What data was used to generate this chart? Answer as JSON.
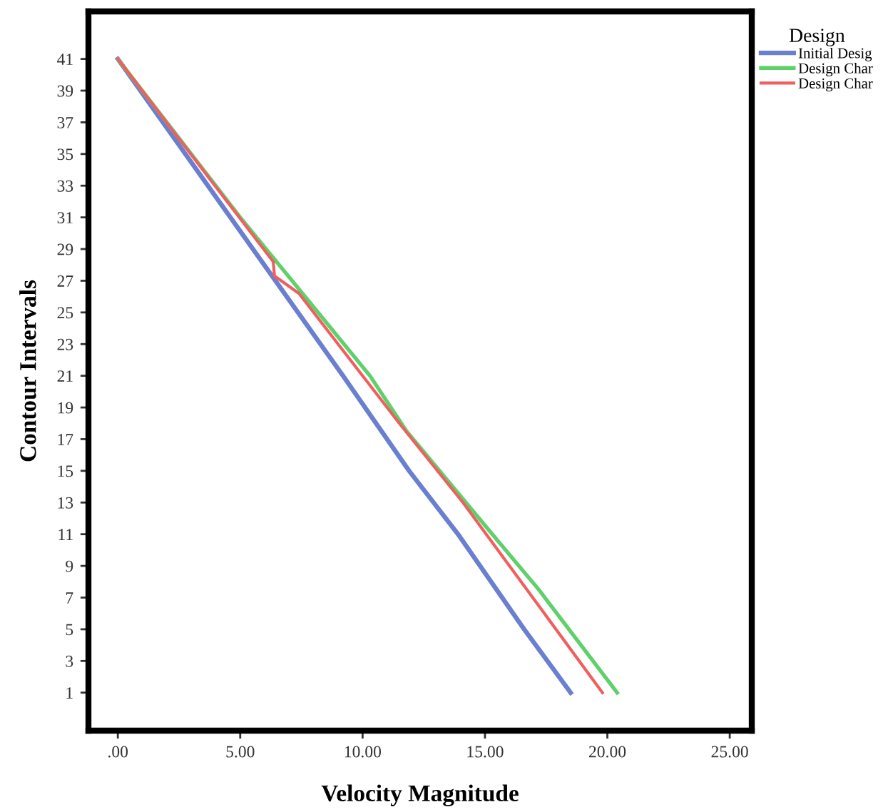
{
  "chart_data": {
    "type": "line",
    "xlabel": "Velocity Magnitude",
    "ylabel": "Contour Intervals",
    "legend_title": "Design",
    "legend": "top right",
    "grid": false,
    "xlim": [
      -1.2,
      25.9
    ],
    "ylim": [
      -1.4,
      44
    ],
    "xticks": [
      {
        "value": 0,
        "label": ".00"
      },
      {
        "value": 5,
        "label": "5.00"
      },
      {
        "value": 10,
        "label": "10.00"
      },
      {
        "value": 15,
        "label": "15.00"
      },
      {
        "value": 20,
        "label": "20.00"
      },
      {
        "value": 25,
        "label": "25.00"
      }
    ],
    "yticks": [
      1,
      3,
      5,
      7,
      9,
      11,
      13,
      15,
      17,
      19,
      21,
      23,
      25,
      27,
      29,
      31,
      33,
      35,
      37,
      39,
      41
    ],
    "series": [
      {
        "name": "Initial Desig",
        "color": "#6a7fd0",
        "x": [
          0,
          4.6,
          9.2,
          11.9,
          13.9,
          16.6,
          18.5
        ],
        "values": [
          41,
          31,
          21,
          15,
          11,
          5,
          1
        ]
      },
      {
        "name": "Design Char",
        "color": "#5fd06a",
        "x": [
          0,
          5,
          10.3,
          11.8,
          15.3,
          17.2,
          20.4
        ],
        "values": [
          41,
          31,
          21,
          17.5,
          11,
          7.5,
          1
        ]
      },
      {
        "name": "Design Char",
        "color": "#f05f5f",
        "x": [
          0,
          6.35,
          6.4,
          7.4,
          11.5,
          14.1,
          19.8
        ],
        "values": [
          41,
          28.2,
          27.3,
          26.2,
          18,
          13,
          1
        ]
      }
    ]
  }
}
